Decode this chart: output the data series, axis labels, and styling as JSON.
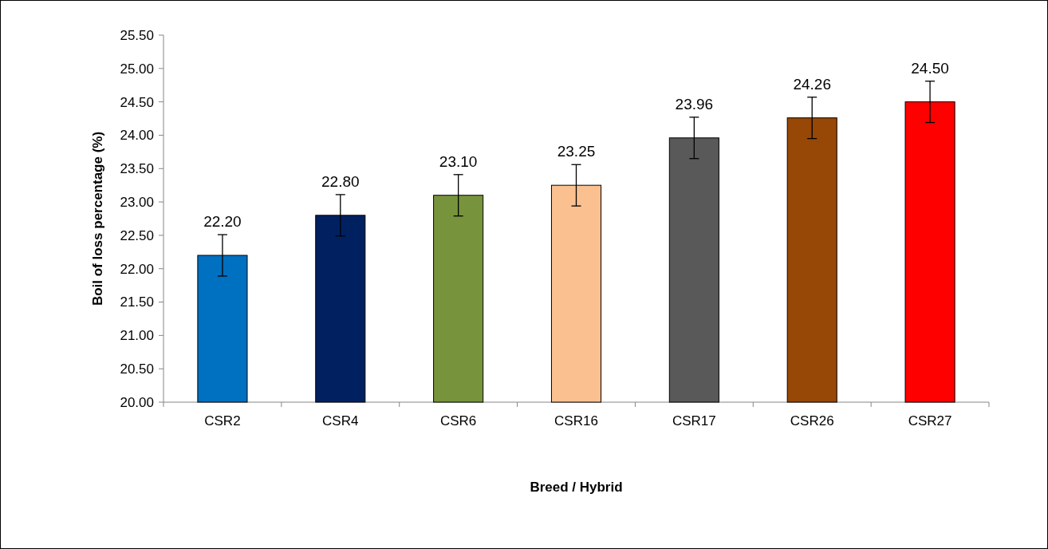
{
  "chart_data": {
    "type": "bar",
    "xlabel": "Breed / Hybrid",
    "ylabel": "Boil of loss percentage (%)",
    "categories": [
      "CSR2",
      "CSR4",
      "CSR6",
      "CSR16",
      "CSR17",
      "CSR26",
      "CSR27"
    ],
    "values": [
      22.2,
      22.8,
      23.1,
      23.25,
      23.96,
      24.26,
      24.5
    ],
    "colors": [
      "#0070c0",
      "#002060",
      "#77933c",
      "#fac090",
      "#595959",
      "#974706",
      "#ff0000"
    ],
    "errors": [
      0.31,
      0.31,
      0.31,
      0.31,
      0.31,
      0.31,
      0.31
    ],
    "ylim": [
      20,
      25.5
    ],
    "yticks": [
      {
        "value": 20,
        "label": "20.00"
      },
      {
        "value": 20.5,
        "label": "20.50"
      },
      {
        "value": 21,
        "label": "21.00"
      },
      {
        "value": 21.5,
        "label": "21.50"
      },
      {
        "value": 22,
        "label": "22.00"
      },
      {
        "value": 22.5,
        "label": "22.50"
      },
      {
        "value": 23,
        "label": "23.00"
      },
      {
        "value": 23.5,
        "label": "23.50"
      },
      {
        "value": 24,
        "label": "24.00"
      },
      {
        "value": 24.5,
        "label": "24.50"
      },
      {
        "value": 25,
        "label": "25.00"
      },
      {
        "value": 25.5,
        "label": "25.50"
      }
    ],
    "value_labels": [
      "22.20",
      "22.80",
      "23.10",
      "23.25",
      "23.96",
      "24.26",
      "24.50"
    ]
  }
}
